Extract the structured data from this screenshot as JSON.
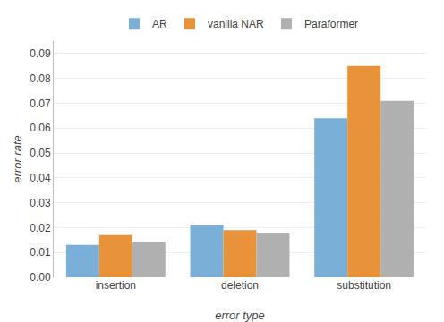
{
  "chart_data": {
    "type": "bar",
    "categories": [
      "insertion",
      "deletion",
      "substitution"
    ],
    "series": [
      {
        "name": "AR",
        "color": "#7ab0d8",
        "values": [
          0.013,
          0.021,
          0.064
        ]
      },
      {
        "name": "vanilla NAR",
        "color": "#e8923a",
        "values": [
          0.017,
          0.019,
          0.085
        ]
      },
      {
        "name": "Paraformer",
        "color": "#b0b0b0",
        "values": [
          0.014,
          0.018,
          0.071
        ]
      }
    ],
    "xlabel": "error type",
    "ylabel": "error rate",
    "ylim": [
      0.0,
      0.095
    ],
    "yticks": [
      {
        "value": 0,
        "label": "0.00"
      },
      0.01,
      0.02,
      0.03,
      0.04,
      0.05,
      0.06,
      0.07,
      0.08,
      0.09
    ],
    "grid": true,
    "legend": "top"
  }
}
